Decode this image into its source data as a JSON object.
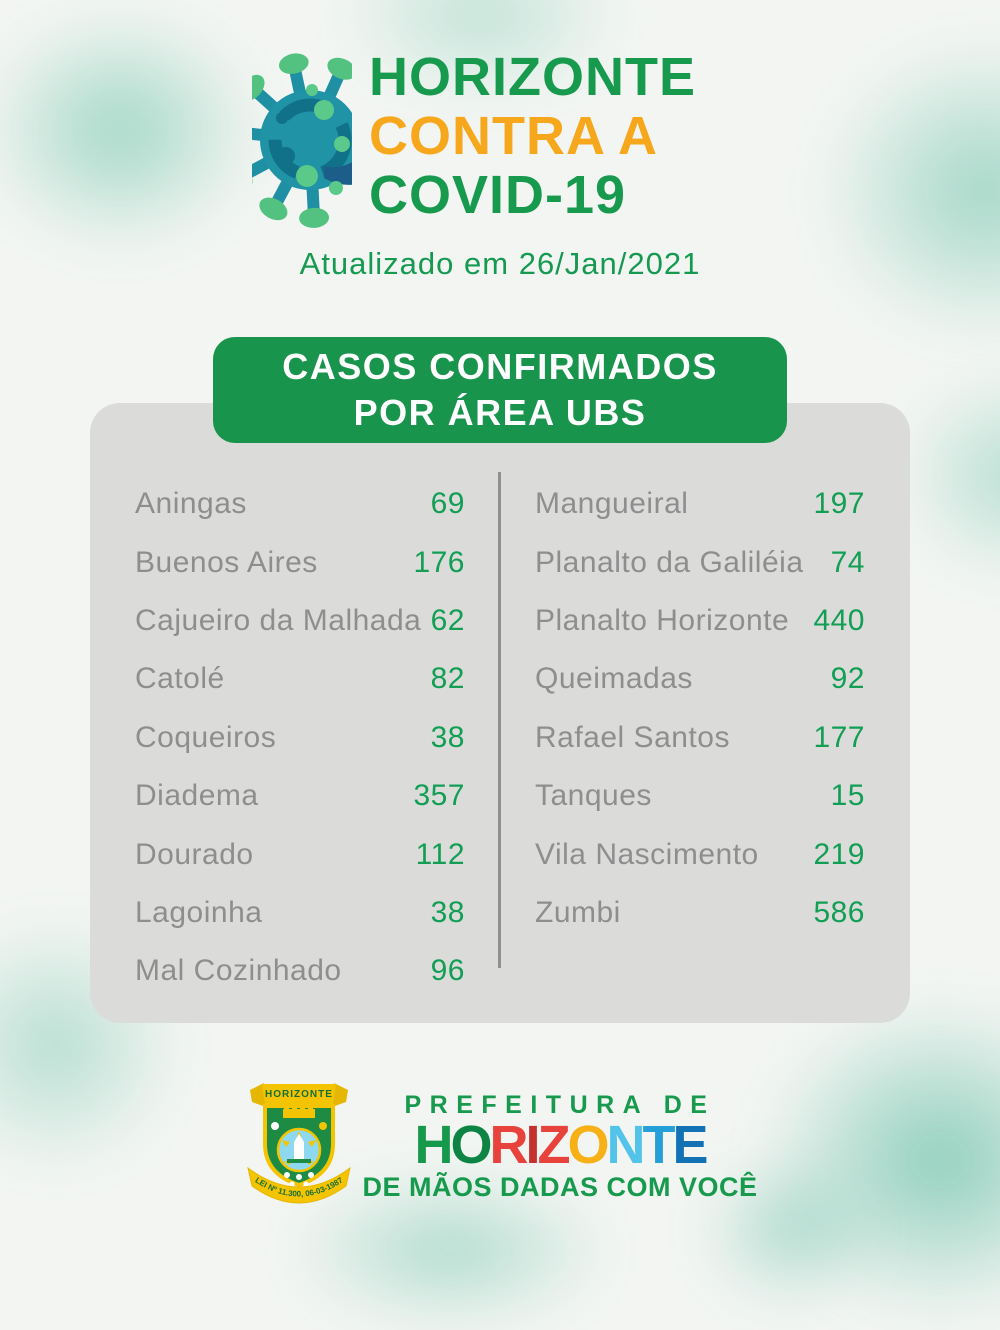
{
  "header": {
    "title_line1": "HORIZONTE",
    "title_line2": "CONTRA A",
    "title_line3": "COVID-19",
    "updated_text": "Atualizado em 26/Jan/2021"
  },
  "banner": {
    "line1": "CASOS CONFIRMADOS",
    "line2": "POR ÁREA UBS"
  },
  "cases_table": {
    "columns": [
      {
        "rows": [
          {
            "area": "Aningas",
            "cases": "69"
          },
          {
            "area": "Buenos Aires",
            "cases": "176"
          },
          {
            "area": "Cajueiro da Malhada",
            "cases": "62"
          },
          {
            "area": "Catolé",
            "cases": "82"
          },
          {
            "area": "Coqueiros",
            "cases": "38"
          },
          {
            "area": "Diadema",
            "cases": "357"
          },
          {
            "area": "Dourado",
            "cases": "112"
          },
          {
            "area": "Lagoinha",
            "cases": "38"
          },
          {
            "area": "Mal Cozinhado",
            "cases": "96"
          }
        ]
      },
      {
        "rows": [
          {
            "area": "Mangueiral",
            "cases": "197"
          },
          {
            "area": "Planalto da Galiléia",
            "cases": "74"
          },
          {
            "area": "Planalto Horizonte",
            "cases": "440"
          },
          {
            "area": "Queimadas",
            "cases": "92"
          },
          {
            "area": "Rafael Santos",
            "cases": "177"
          },
          {
            "area": "Tanques",
            "cases": "15"
          },
          {
            "area": "Vila Nascimento",
            "cases": "219"
          },
          {
            "area": "Zumbi",
            "cases": "586"
          }
        ]
      }
    ]
  },
  "footer": {
    "dept_line": "PREFEITURA DE",
    "wordmark_letters": [
      {
        "ch": "H",
        "color": "#17994c"
      },
      {
        "ch": "O",
        "color": "#0e8444"
      },
      {
        "ch": "R",
        "color": "#e8423c"
      },
      {
        "ch": "I",
        "color": "#c4312f"
      },
      {
        "ch": "Z",
        "color": "#e8423c"
      },
      {
        "ch": "O",
        "color": "#f7b117"
      },
      {
        "ch": "N",
        "color": "#54c3ea"
      },
      {
        "ch": "T",
        "color": "#259fd8"
      },
      {
        "ch": "E",
        "color": "#1372b5"
      }
    ],
    "tagline": "DE MÃOS DADAS COM VOCÊ",
    "crest": {
      "top_ribbon": "HORIZONTE",
      "bottom_ribbon": "LEI Nº 11.300, 06-03-1987"
    }
  },
  "colors": {
    "title_green": "#17994e",
    "title_orange": "#f6a71b",
    "banner_green": "#18944d",
    "card_gray": "#dbdcda",
    "area_name_gray": "#8e8e8e",
    "count_green": "#129e54",
    "virus_teal": "#2093a6",
    "virus_green": "#5bc989"
  }
}
